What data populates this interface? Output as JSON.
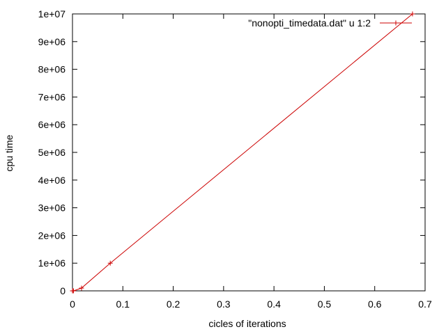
{
  "chart_data": {
    "type": "line",
    "title": "",
    "xlabel": "cicles of iterations",
    "ylabel": "cpu time",
    "xlim": [
      0,
      0.7
    ],
    "ylim": [
      0,
      10000000
    ],
    "x_ticks": [
      0,
      0.1,
      0.2,
      0.3,
      0.4,
      0.5,
      0.6,
      0.7
    ],
    "x_tick_labels": [
      "0",
      "0.1",
      "0.2",
      "0.3",
      "0.4",
      "0.5",
      "0.6",
      "0.7"
    ],
    "y_ticks": [
      0,
      1000000,
      2000000,
      3000000,
      4000000,
      5000000,
      6000000,
      7000000,
      8000000,
      9000000,
      10000000
    ],
    "y_tick_labels": [
      "0",
      "1e+06",
      "2e+06",
      "3e+06",
      "4e+06",
      "5e+06",
      "6e+06",
      "7e+06",
      "8e+06",
      "9e+06",
      "1e+07"
    ],
    "grid": false,
    "legend_position": "top-right",
    "series": [
      {
        "name": "\"nonopti_timedata.dat\" u 1:2",
        "color": "#cc0000",
        "marker": "plus",
        "x": [
          0,
          0.0003,
          0.002,
          0.018,
          0.075,
          0.675
        ],
        "y": [
          10,
          100,
          1000,
          100000,
          1000000,
          10000000
        ]
      }
    ]
  }
}
